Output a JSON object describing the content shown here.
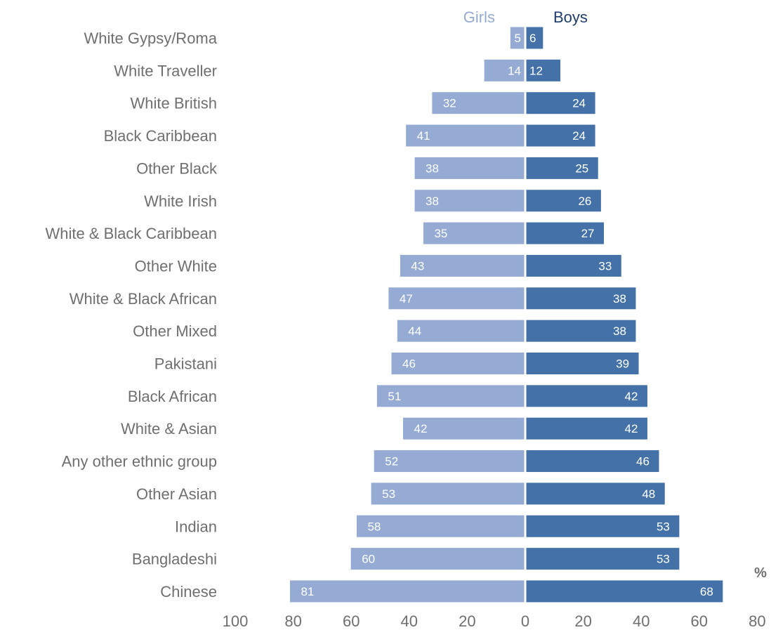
{
  "chart_data": {
    "type": "bar",
    "orientation": "horizontal-diverging",
    "categories": [
      "White Gypsy/Roma",
      "White Traveller",
      "White British",
      "Black Caribbean",
      "Other Black",
      "White Irish",
      "White & Black Caribbean",
      "Other White",
      "White & Black African",
      "Other Mixed",
      "Pakistani",
      "Black African",
      "White & Asian",
      "Any other ethnic group",
      "Other Asian",
      "Indian",
      "Bangladeshi",
      "Chinese"
    ],
    "series": [
      {
        "name": "Girls",
        "color": "#95abd3",
        "direction": "left",
        "values": [
          5,
          14,
          32,
          41,
          38,
          38,
          35,
          43,
          47,
          44,
          46,
          51,
          42,
          52,
          53,
          58,
          60,
          81
        ]
      },
      {
        "name": "Boys",
        "color": "#4472a8",
        "direction": "right",
        "values": [
          6,
          12,
          24,
          24,
          25,
          26,
          27,
          33,
          38,
          38,
          39,
          42,
          42,
          46,
          48,
          53,
          53,
          68
        ]
      }
    ],
    "xticks": [
      "100",
      "80",
      "60",
      "40",
      "20",
      "0",
      "20",
      "40",
      "60",
      "80"
    ],
    "xlim_left": [
      0,
      100
    ],
    "xlim_right": [
      0,
      80
    ],
    "unit": "%",
    "legend_position": "top-center",
    "grid": false,
    "colors": {
      "girls_text": "#95abd3",
      "boys_text": "#1f3e6e"
    }
  }
}
